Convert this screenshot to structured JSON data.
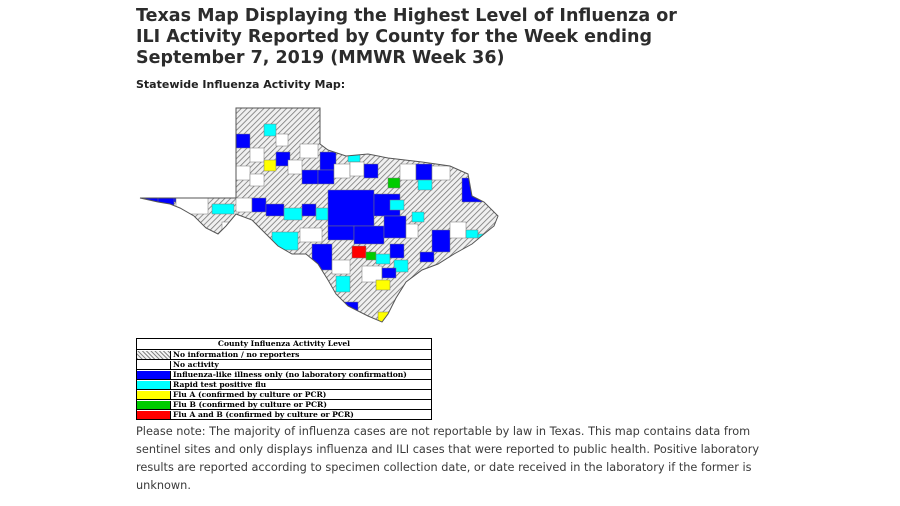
{
  "page": {
    "title_lines": [
      "Texas Map Displaying the Highest Level of Influenza or",
      "ILI Activity Reported by County for the Week ending",
      "September 7, 2019 (MMWR Week 36)"
    ],
    "subtitle": "Statewide Influenza Activity Map:",
    "note": "Please note: The majority of influenza cases are not reportable by law in Texas. This map contains data from sentinel sites and only displays influenza and ILI cases that were reported to public health. Positive laboratory results are reported according to specimen collection date, or date received in the laboratory if the former is unknown."
  },
  "map": {
    "region": "Texas",
    "colors": {
      "no_information": "hatch-gray",
      "no_activity": "#ffffff",
      "ili_only": "#0000ff",
      "rapid_test": "#00ffff",
      "flu_a": "#ffff00",
      "flu_b": "#00cc00",
      "flu_a_and_b": "#ff0000",
      "border": "#666666"
    }
  },
  "legend": {
    "title": "County Influenza Activity Level",
    "items": [
      {
        "label": "No information / no reporters",
        "color": "hatch"
      },
      {
        "label": "No activity",
        "color": "#ffffff"
      },
      {
        "label": "Influenza-like illness only (no laboratory confirmation)",
        "color": "#0000ff"
      },
      {
        "label": "Rapid test positive flu",
        "color": "#00ffff"
      },
      {
        "label": "Flu A (confirmed by culture or PCR)",
        "color": "#ffff00"
      },
      {
        "label": "Flu B (confirmed by culture or PCR)",
        "color": "#00cc00"
      },
      {
        "label": "Flu A and B (confirmed by culture or PCR)",
        "color": "#ff0000"
      }
    ]
  }
}
